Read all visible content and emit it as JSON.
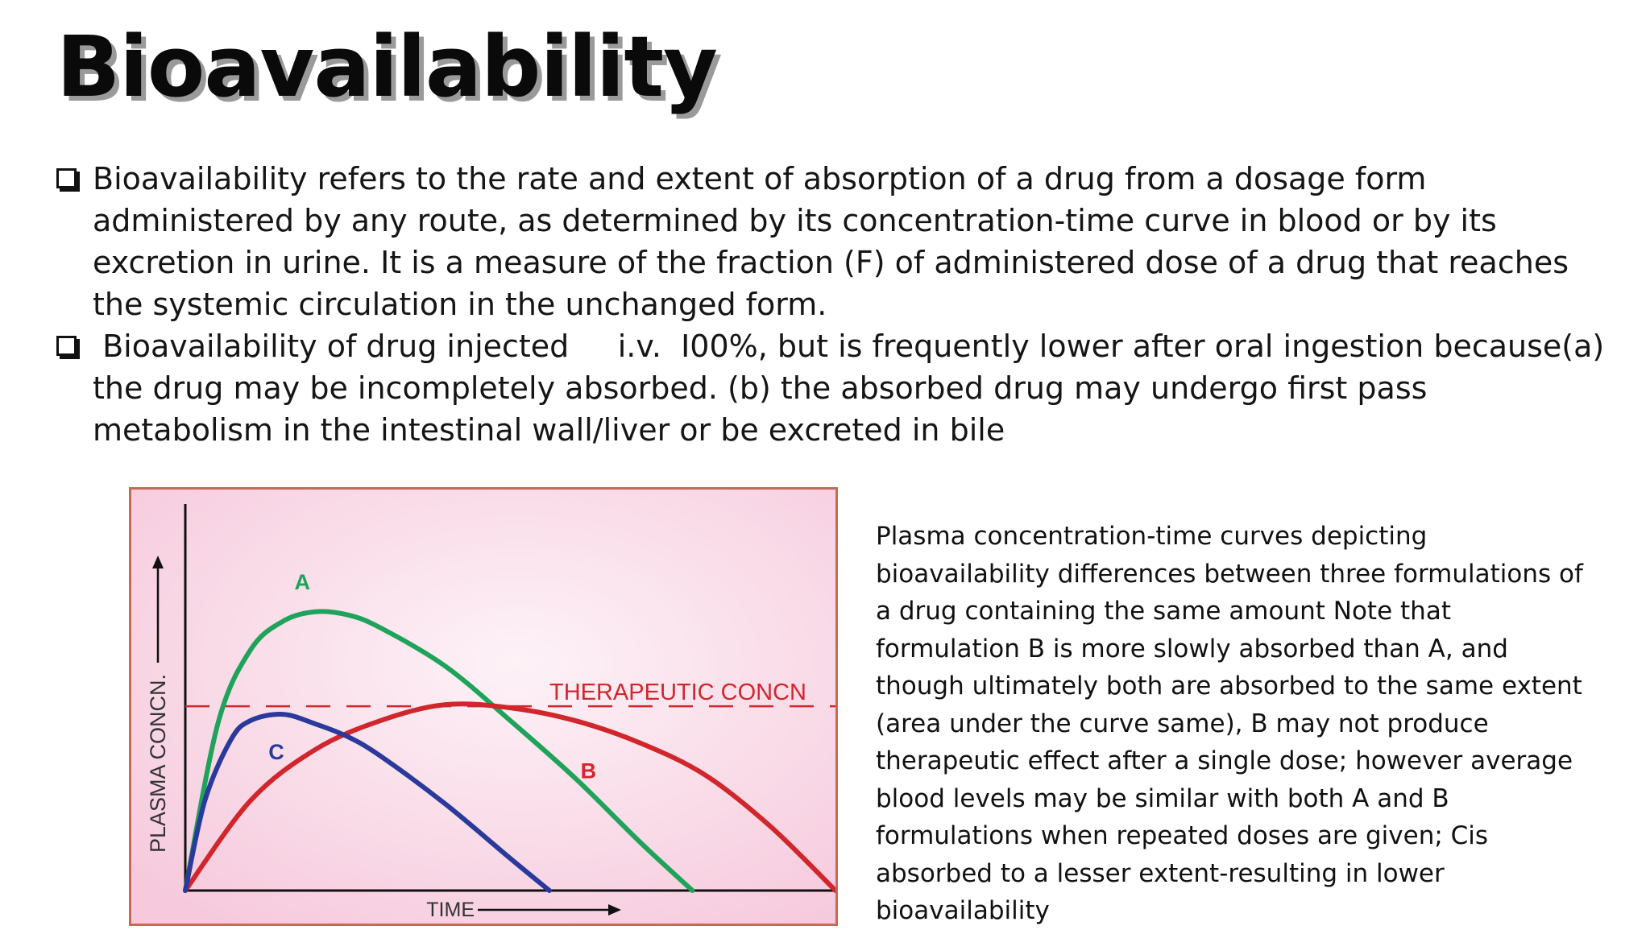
{
  "title": "Bioavailability",
  "bullets": [
    {
      "text": "Bioavailability refers to the rate and extent of absorption of a drug from a dosage form administered by any route, as determined by its concentration-time curve in blood or by its excretion in urine. It is a measure of the fraction (F) of administered dose of a drug that reaches the systemic circulation in the unchanged form."
    },
    {
      "text": " Bioavailability of drug injected     i.v.  I00%, but is frequently lower after oral ingestion because(a) the drug may be incompletely absorbed. (b) the absorbed drug may undergo first pass metabolism in the intestinal wall/liver or be excreted in bile"
    }
  ],
  "caption": "Plasma concentration-time curves depicting bioavailability differences between three formulations of a drug containing the same amount Note that formulation B is more slowly absorbed than A, and though ultimately both are absorbed to the same extent (area under the curve same), B may not produce therapeutic effect after a single dose; however average blood levels may be similar with both A and B formulations when repeated doses are given; Cis absorbed to a lesser extent-resulting in lower bioavailability",
  "chart_data": {
    "type": "line",
    "xlabel": "TIME",
    "ylabel": "PLASMA CONCN.",
    "xlim": [
      0,
      10
    ],
    "ylim": [
      0,
      10
    ],
    "series": [
      {
        "name": "A",
        "color": "#1fa35a",
        "x": [
          0,
          0.5,
          1,
          1.5,
          2,
          2.5,
          3,
          4,
          5,
          6,
          7,
          7.8
        ],
        "y": [
          0,
          5.2,
          7.5,
          8.4,
          8.7,
          8.6,
          8.2,
          7.0,
          5.3,
          3.5,
          1.5,
          0
        ]
      },
      {
        "name": "B",
        "color": "#d0262c",
        "x": [
          0,
          1,
          2,
          3,
          4,
          5,
          6,
          7,
          8,
          9,
          10
        ],
        "y": [
          0,
          2.8,
          4.4,
          5.3,
          5.8,
          5.7,
          5.3,
          4.6,
          3.6,
          2.0,
          0
        ]
      },
      {
        "name": "C",
        "color": "#2a3a9a",
        "x": [
          0,
          0.3,
          0.7,
          1,
          1.5,
          2,
          2.5,
          3,
          4,
          5,
          5.6
        ],
        "y": [
          0,
          2.8,
          4.7,
          5.3,
          5.5,
          5.2,
          4.8,
          4.2,
          2.7,
          1.0,
          0
        ]
      }
    ],
    "reference_line": {
      "label": "THERAPEUTIC CONCN",
      "y": 5.75,
      "color": "#d0262c"
    },
    "background": "#f6c9dc",
    "grid": false,
    "legend": "none"
  }
}
